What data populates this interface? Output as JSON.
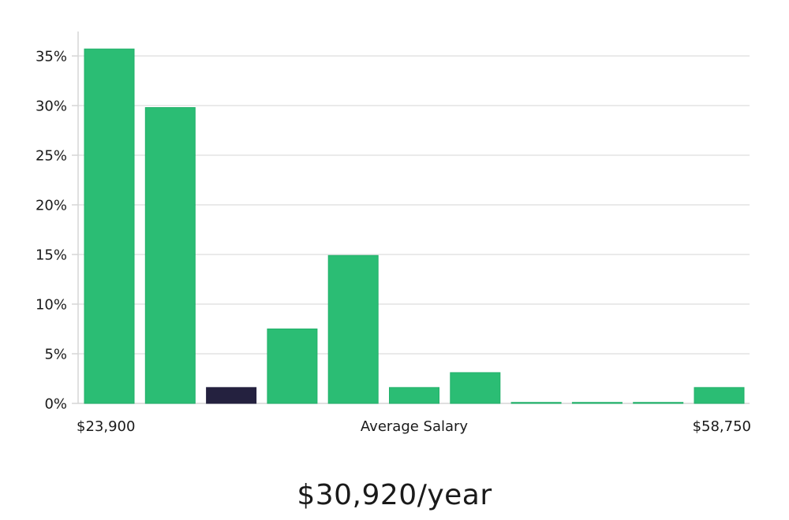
{
  "chart_data": {
    "type": "bar",
    "title": "",
    "ylabel": "",
    "xlabel": "Average Salary",
    "x_min_label": "$23,900",
    "x_max_label": "$58,750",
    "ylim": [
      0,
      37.5
    ],
    "y_ticks": [
      0,
      5,
      10,
      15,
      20,
      25,
      30,
      35
    ],
    "y_tick_labels": [
      "0%",
      "5%",
      "10%",
      "15%",
      "20%",
      "25%",
      "30%",
      "35%"
    ],
    "grid": true,
    "values": [
      35.7,
      29.8,
      1.6,
      7.5,
      14.9,
      1.6,
      3.1,
      0.1,
      0.1,
      0.1,
      1.6
    ],
    "highlight_index": 2,
    "bar_color": "#2bbd74",
    "bar_edge_color": "#22b06a",
    "highlight_color": "#24213f"
  },
  "salary": {
    "value": "$30,920/year"
  }
}
